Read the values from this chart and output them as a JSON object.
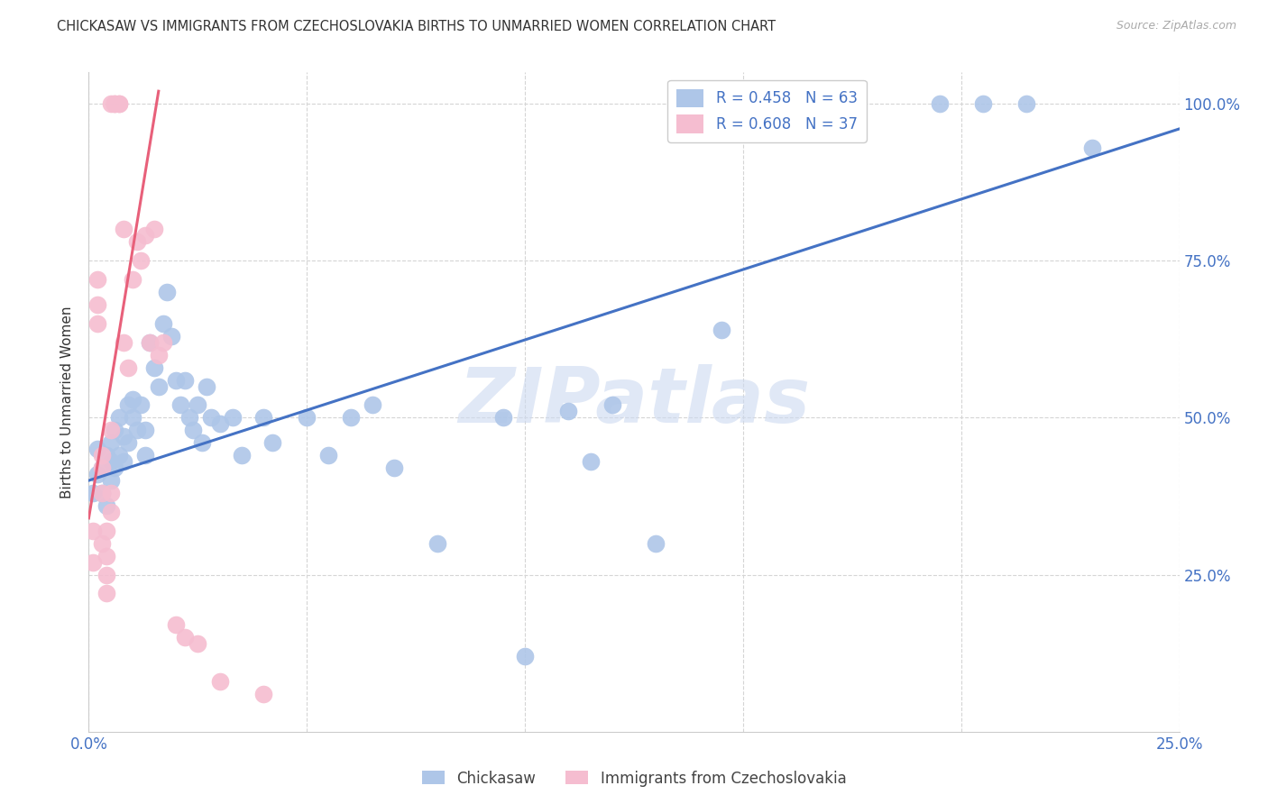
{
  "title": "CHICKASAW VS IMMIGRANTS FROM CZECHOSLOVAKIA BIRTHS TO UNMARRIED WOMEN CORRELATION CHART",
  "source": "Source: ZipAtlas.com",
  "ylabel": "Births to Unmarried Women",
  "legend_blue_r": "R = 0.458",
  "legend_blue_n": "N = 63",
  "legend_pink_r": "R = 0.608",
  "legend_pink_n": "N = 37",
  "legend_blue_label": "Chickasaw",
  "legend_pink_label": "Immigrants from Czechoslovakia",
  "blue_color": "#aec6e8",
  "pink_color": "#f5bdd0",
  "line_blue_color": "#4472c4",
  "line_pink_color": "#e8607a",
  "tick_color": "#4472c4",
  "watermark_color": "#ccd9f0",
  "watermark": "ZIPatlas",
  "blue_points": [
    [
      0.001,
      0.38
    ],
    [
      0.002,
      0.41
    ],
    [
      0.002,
      0.45
    ],
    [
      0.003,
      0.38
    ],
    [
      0.003,
      0.42
    ],
    [
      0.004,
      0.44
    ],
    [
      0.004,
      0.36
    ],
    [
      0.005,
      0.4
    ],
    [
      0.005,
      0.43
    ],
    [
      0.005,
      0.46
    ],
    [
      0.006,
      0.42
    ],
    [
      0.006,
      0.48
    ],
    [
      0.007,
      0.44
    ],
    [
      0.007,
      0.5
    ],
    [
      0.008,
      0.43
    ],
    [
      0.008,
      0.47
    ],
    [
      0.009,
      0.52
    ],
    [
      0.009,
      0.46
    ],
    [
      0.01,
      0.5
    ],
    [
      0.01,
      0.53
    ],
    [
      0.011,
      0.48
    ],
    [
      0.012,
      0.52
    ],
    [
      0.013,
      0.44
    ],
    [
      0.013,
      0.48
    ],
    [
      0.014,
      0.62
    ],
    [
      0.015,
      0.58
    ],
    [
      0.016,
      0.55
    ],
    [
      0.017,
      0.65
    ],
    [
      0.018,
      0.7
    ],
    [
      0.019,
      0.63
    ],
    [
      0.02,
      0.56
    ],
    [
      0.021,
      0.52
    ],
    [
      0.022,
      0.56
    ],
    [
      0.023,
      0.5
    ],
    [
      0.024,
      0.48
    ],
    [
      0.025,
      0.52
    ],
    [
      0.026,
      0.46
    ],
    [
      0.027,
      0.55
    ],
    [
      0.028,
      0.5
    ],
    [
      0.03,
      0.49
    ],
    [
      0.033,
      0.5
    ],
    [
      0.035,
      0.44
    ],
    [
      0.04,
      0.5
    ],
    [
      0.042,
      0.46
    ],
    [
      0.05,
      0.5
    ],
    [
      0.055,
      0.44
    ],
    [
      0.06,
      0.5
    ],
    [
      0.065,
      0.52
    ],
    [
      0.07,
      0.42
    ],
    [
      0.08,
      0.3
    ],
    [
      0.095,
      0.5
    ],
    [
      0.1,
      0.12
    ],
    [
      0.11,
      0.51
    ],
    [
      0.115,
      0.43
    ],
    [
      0.12,
      0.52
    ],
    [
      0.13,
      0.3
    ],
    [
      0.145,
      0.64
    ],
    [
      0.155,
      1.0
    ],
    [
      0.175,
      1.0
    ],
    [
      0.195,
      1.0
    ],
    [
      0.205,
      1.0
    ],
    [
      0.215,
      1.0
    ],
    [
      0.23,
      0.93
    ]
  ],
  "pink_points": [
    [
      0.001,
      0.27
    ],
    [
      0.001,
      0.32
    ],
    [
      0.002,
      0.65
    ],
    [
      0.002,
      0.72
    ],
    [
      0.002,
      0.68
    ],
    [
      0.003,
      0.44
    ],
    [
      0.003,
      0.42
    ],
    [
      0.003,
      0.38
    ],
    [
      0.003,
      0.3
    ],
    [
      0.004,
      0.28
    ],
    [
      0.004,
      0.25
    ],
    [
      0.004,
      0.22
    ],
    [
      0.004,
      0.32
    ],
    [
      0.005,
      0.35
    ],
    [
      0.005,
      0.38
    ],
    [
      0.005,
      0.48
    ],
    [
      0.005,
      1.0
    ],
    [
      0.006,
      1.0
    ],
    [
      0.006,
      1.0
    ],
    [
      0.007,
      1.0
    ],
    [
      0.007,
      1.0
    ],
    [
      0.008,
      0.8
    ],
    [
      0.008,
      0.62
    ],
    [
      0.009,
      0.58
    ],
    [
      0.01,
      0.72
    ],
    [
      0.011,
      0.78
    ],
    [
      0.012,
      0.75
    ],
    [
      0.013,
      0.79
    ],
    [
      0.014,
      0.62
    ],
    [
      0.015,
      0.8
    ],
    [
      0.016,
      0.6
    ],
    [
      0.017,
      0.62
    ],
    [
      0.02,
      0.17
    ],
    [
      0.022,
      0.15
    ],
    [
      0.025,
      0.14
    ],
    [
      0.03,
      0.08
    ],
    [
      0.04,
      0.06
    ]
  ],
  "xlim": [
    0.0,
    0.25
  ],
  "ylim": [
    0.0,
    1.05
  ],
  "blue_line_x": [
    0.0,
    0.25
  ],
  "blue_line_y": [
    0.4,
    0.96
  ],
  "pink_line_x": [
    0.0,
    0.016
  ],
  "pink_line_y": [
    0.34,
    1.02
  ],
  "xtick_vals": [
    0.0,
    0.05,
    0.1,
    0.15,
    0.2,
    0.25
  ],
  "xtick_labels": [
    "0.0%",
    "",
    "",
    "",
    "",
    "25.0%"
  ],
  "ytick_vals": [
    0.25,
    0.5,
    0.75,
    1.0
  ],
  "ytick_labels": [
    "25.0%",
    "50.0%",
    "75.0%",
    "100.0%"
  ],
  "figsize": [
    14.06,
    8.92
  ]
}
